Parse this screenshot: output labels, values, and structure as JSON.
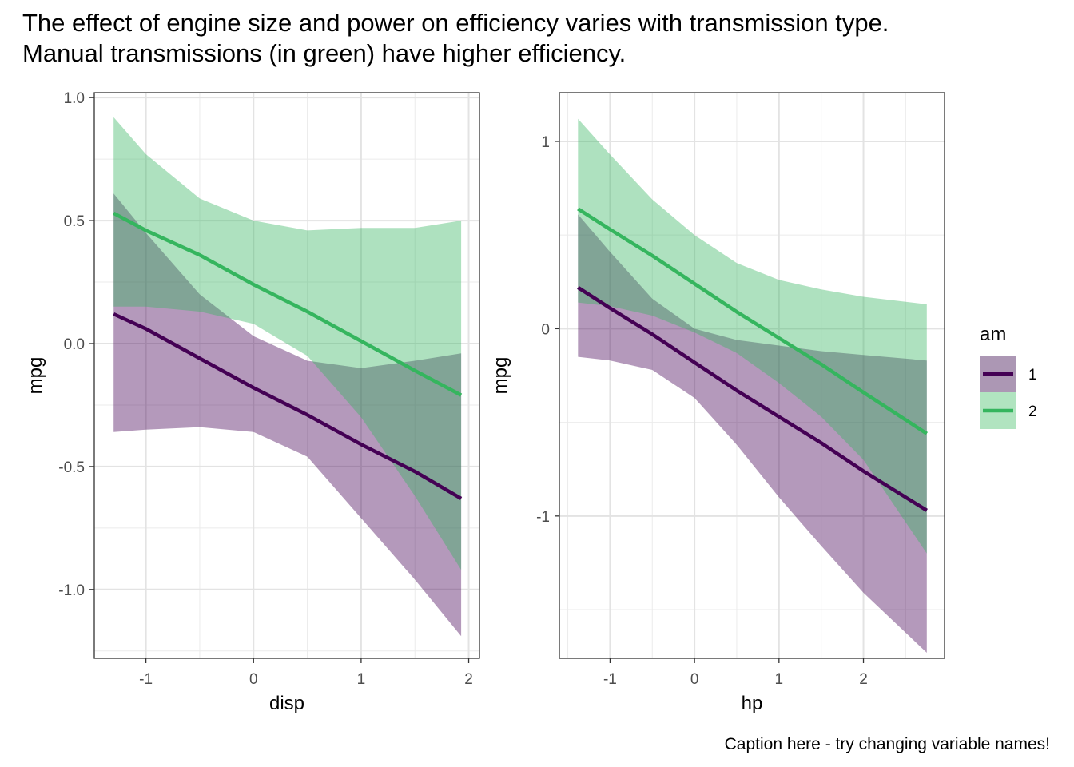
{
  "title_line1": "The effect of engine size and power on efficiency varies with transmission type.",
  "title_line2": "Manual transmissions (in green) have higher efficiency.",
  "caption": "Caption here - try changing variable names!",
  "legend": {
    "title": "am",
    "items": [
      {
        "label": "1",
        "line_color": "#440154",
        "fill_color": "#ac97b4"
      },
      {
        "label": "2",
        "line_color": "#35b55e",
        "fill_color": "#b1e4c0"
      }
    ]
  },
  "chart_data": [
    {
      "type": "line",
      "xlabel": "disp",
      "ylabel": "mpg",
      "xlim": [
        -1.48,
        2.1
      ],
      "ylim": [
        -1.28,
        1.02
      ],
      "xticks": [
        -1,
        0,
        1,
        2
      ],
      "xtick_labels": [
        "-1",
        "0",
        "1",
        "2"
      ],
      "yticks": [
        -1.0,
        -0.5,
        0.0,
        0.5,
        1.0
      ],
      "ytick_labels": [
        "-1.0",
        "-0.5",
        "0.0",
        "0.5",
        "1.0"
      ],
      "grid": true,
      "series": [
        {
          "name": "1",
          "x": [
            -1.3,
            -1.0,
            -0.5,
            0.0,
            0.5,
            1.0,
            1.5,
            1.93
          ],
          "y": [
            0.12,
            0.06,
            -0.06,
            -0.18,
            -0.29,
            -0.41,
            -0.52,
            -0.63
          ],
          "lower": [
            -0.36,
            -0.35,
            -0.34,
            -0.36,
            -0.46,
            -0.71,
            -0.96,
            -1.19
          ],
          "upper": [
            0.61,
            0.45,
            0.2,
            0.03,
            -0.07,
            -0.1,
            -0.07,
            -0.04
          ]
        },
        {
          "name": "2",
          "x": [
            -1.3,
            -1.0,
            -0.5,
            0.0,
            0.5,
            1.0,
            1.5,
            1.93
          ],
          "y": [
            0.53,
            0.46,
            0.36,
            0.24,
            0.13,
            0.01,
            -0.11,
            -0.21
          ],
          "lower": [
            0.15,
            0.15,
            0.13,
            0.08,
            -0.05,
            -0.3,
            -0.62,
            -0.92
          ],
          "upper": [
            0.92,
            0.77,
            0.59,
            0.5,
            0.46,
            0.47,
            0.47,
            0.5
          ]
        }
      ]
    },
    {
      "type": "line",
      "xlabel": "hp",
      "ylabel": "mpg",
      "xlim": [
        -1.6,
        2.96
      ],
      "ylim": [
        -1.76,
        1.26
      ],
      "xticks": [
        -1,
        0,
        1,
        2
      ],
      "xtick_labels": [
        "-1",
        "0",
        "1",
        "2"
      ],
      "yticks": [
        -1,
        0,
        1
      ],
      "ytick_labels": [
        "-1",
        "0",
        "1"
      ],
      "grid": true,
      "series": [
        {
          "name": "1",
          "x": [
            -1.38,
            -1.0,
            -0.5,
            0.0,
            0.5,
            1.0,
            1.5,
            2.0,
            2.75
          ],
          "y": [
            0.22,
            0.11,
            -0.03,
            -0.18,
            -0.33,
            -0.47,
            -0.61,
            -0.76,
            -0.97
          ],
          "lower": [
            -0.15,
            -0.17,
            -0.22,
            -0.37,
            -0.62,
            -0.9,
            -1.16,
            -1.41,
            -1.73
          ],
          "upper": [
            0.61,
            0.41,
            0.16,
            0.0,
            -0.06,
            -0.09,
            -0.12,
            -0.14,
            -0.17
          ]
        },
        {
          "name": "2",
          "x": [
            -1.38,
            -1.0,
            -0.5,
            0.0,
            0.5,
            1.0,
            1.5,
            2.0,
            2.75
          ],
          "y": [
            0.64,
            0.53,
            0.39,
            0.24,
            0.09,
            -0.05,
            -0.19,
            -0.34,
            -0.56
          ],
          "lower": [
            0.14,
            0.12,
            0.07,
            -0.02,
            -0.13,
            -0.29,
            -0.47,
            -0.7,
            -1.2
          ],
          "upper": [
            1.12,
            0.93,
            0.69,
            0.5,
            0.35,
            0.26,
            0.21,
            0.17,
            0.13
          ]
        }
      ]
    }
  ]
}
